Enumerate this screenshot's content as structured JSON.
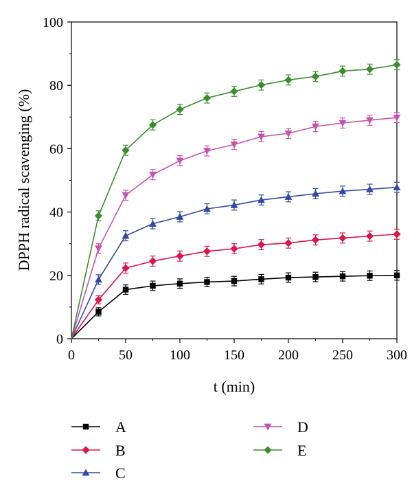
{
  "chart_data": {
    "type": "line",
    "xlabel": "t (min)",
    "ylabel": "DPPH radical scavenging (%)",
    "xlim": [
      0,
      300
    ],
    "ylim": [
      0,
      100
    ],
    "xticks": [
      0,
      50,
      100,
      150,
      200,
      250,
      300
    ],
    "yticks": [
      0,
      20,
      40,
      60,
      80,
      100
    ],
    "grid": false,
    "legend_position": "bottom",
    "x": [
      0,
      25,
      50,
      75,
      100,
      125,
      150,
      175,
      200,
      225,
      250,
      275,
      300
    ],
    "series": [
      {
        "name": "A",
        "color": "#000000",
        "marker": "square",
        "values": [
          0,
          8.5,
          15.5,
          16.7,
          17.4,
          17.9,
          18.2,
          18.8,
          19.3,
          19.5,
          19.7,
          19.9,
          20.0
        ],
        "errors": [
          0,
          1.3,
          1.5,
          1.5,
          1.5,
          1.5,
          1.5,
          1.5,
          1.5,
          1.5,
          1.5,
          1.5,
          1.5
        ]
      },
      {
        "name": "B",
        "color": "#d8174d",
        "marker": "diamond",
        "values": [
          0,
          12.3,
          22.3,
          24.5,
          26.1,
          27.6,
          28.4,
          29.7,
          30.2,
          31.2,
          31.8,
          32.4,
          33.0
        ],
        "errors": [
          0,
          1.3,
          1.6,
          1.6,
          1.6,
          1.6,
          1.6,
          1.6,
          1.6,
          1.6,
          1.6,
          1.6,
          1.6
        ]
      },
      {
        "name": "C",
        "color": "#3448a0",
        "marker": "triangle-up",
        "values": [
          0,
          18.7,
          32.5,
          36.3,
          38.5,
          41.0,
          42.2,
          43.8,
          44.8,
          45.8,
          46.6,
          47.2,
          47.8
        ],
        "errors": [
          0,
          1.5,
          1.6,
          1.6,
          1.6,
          1.6,
          1.6,
          1.6,
          1.6,
          1.6,
          1.6,
          1.6,
          1.6
        ]
      },
      {
        "name": "D",
        "color": "#c455ac",
        "marker": "triangle-down",
        "values": [
          0,
          28.5,
          45.3,
          51.8,
          56.2,
          59.3,
          61.3,
          63.8,
          64.8,
          67.0,
          68.1,
          69.0,
          69.8
        ],
        "errors": [
          0,
          1.5,
          1.6,
          1.6,
          1.6,
          1.6,
          1.6,
          1.6,
          1.6,
          1.6,
          1.6,
          1.6,
          1.6
        ]
      },
      {
        "name": "E",
        "color": "#3c8c2e",
        "marker": "diamond",
        "values": [
          0,
          38.8,
          59.5,
          67.5,
          72.4,
          76.0,
          78.1,
          80.1,
          81.7,
          82.8,
          84.5,
          85.1,
          86.5
        ],
        "errors": [
          0,
          1.6,
          1.6,
          1.6,
          1.6,
          1.6,
          1.6,
          1.6,
          1.6,
          1.6,
          1.6,
          1.6,
          1.6
        ]
      }
    ]
  }
}
